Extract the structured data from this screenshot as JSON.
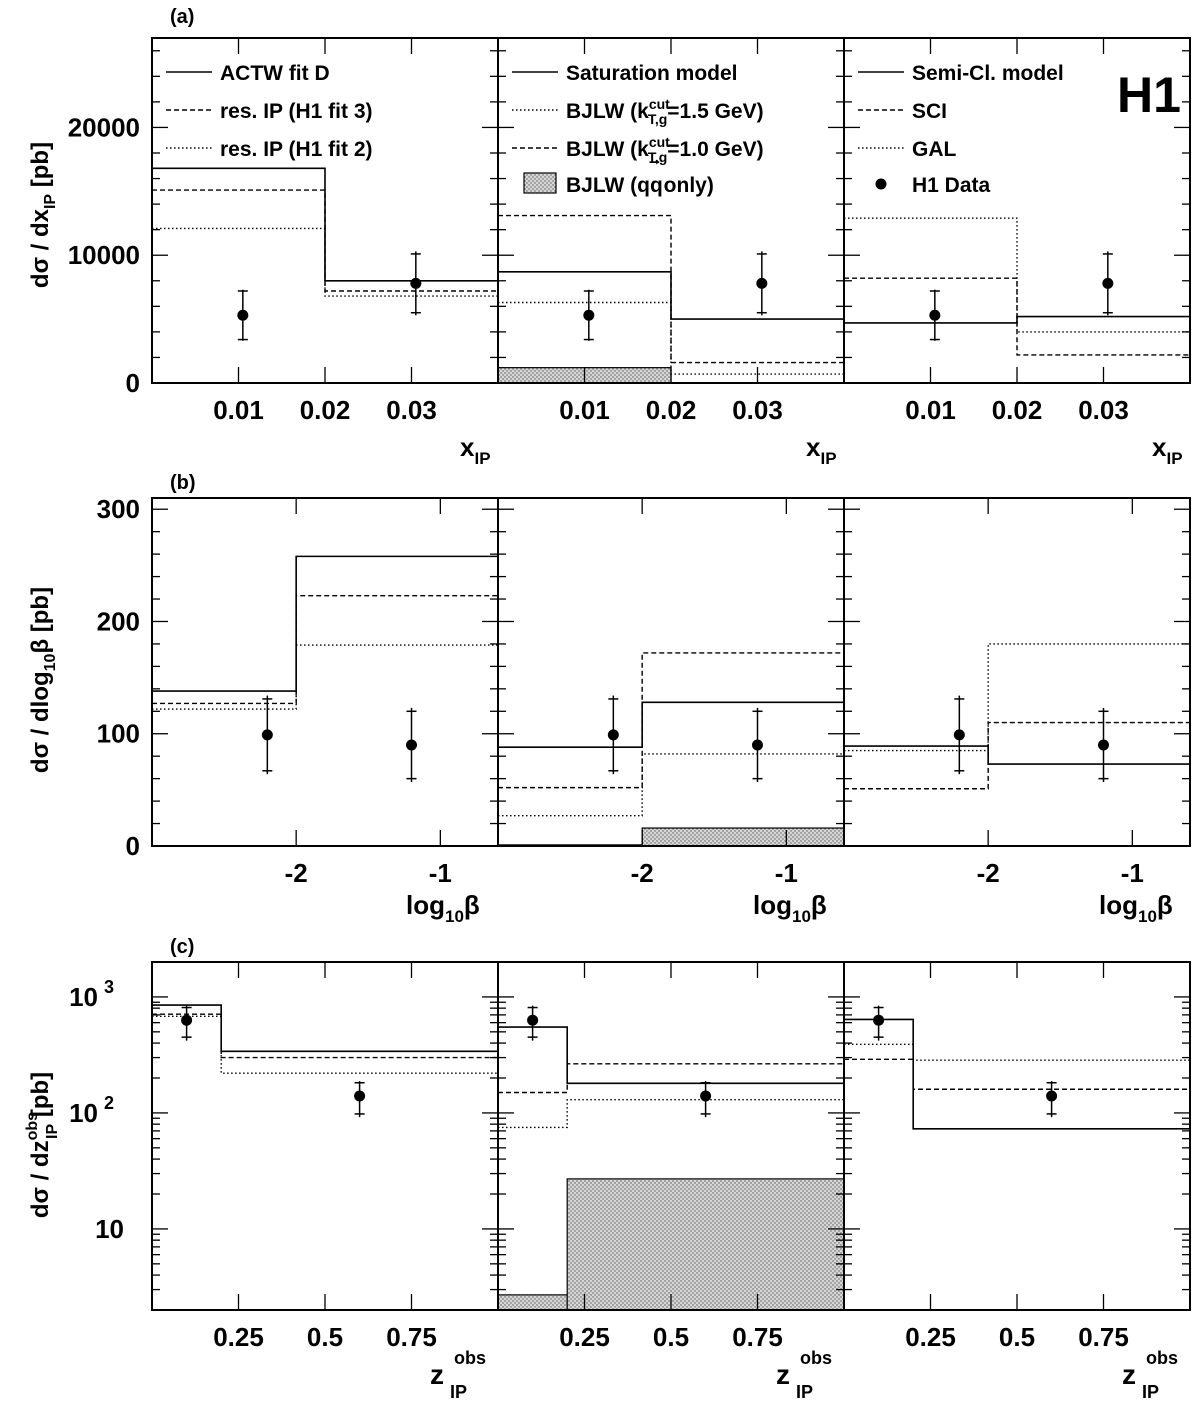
{
  "figure_label": "H1",
  "chart_data": [
    {
      "panel_label": "(a)",
      "type": "step-histogram",
      "ylabel": "dσ / dx_IP [pb]",
      "xlabel": "x_IP",
      "ylim": [
        0,
        27000
      ],
      "xlim": [
        0,
        0.04
      ],
      "yticks": [
        "0",
        "10000",
        "20000"
      ],
      "ytick_values": [
        0,
        10000,
        20000
      ],
      "xticks": [
        "0.01",
        "0.02",
        "0.03"
      ],
      "xtick_values": [
        0.01,
        0.02,
        0.03
      ],
      "bin_edges": [
        0,
        0.02,
        0.04
      ],
      "data": {
        "x": [
          0.0105,
          0.0305
        ],
        "y": [
          5300,
          7800
        ],
        "stat_err": [
          1900,
          2300
        ],
        "tot_err": [
          2000,
          2500
        ]
      },
      "subpanels": [
        {
          "legend": [
            {
              "label": "ACTW fit D",
              "style": "solid"
            },
            {
              "label": "res. IP (H1 fit 3)",
              "style": "dashed"
            },
            {
              "label": "res. IP (H1 fit 2)",
              "style": "dotted"
            }
          ],
          "series": [
            {
              "name": "ACTW fit D",
              "style": "solid",
              "values": [
                16800,
                8000
              ]
            },
            {
              "name": "res. IP (H1 fit 3)",
              "style": "dashed",
              "values": [
                15100,
                7200
              ]
            },
            {
              "name": "res. IP (H1 fit 2)",
              "style": "dotted",
              "values": [
                12100,
                6800
              ]
            }
          ]
        },
        {
          "legend": [
            {
              "label": "Saturation model",
              "style": "solid"
            },
            {
              "label": "BJLW (k_T,g^cut=1.5 GeV)",
              "style": "dotted"
            },
            {
              "label": "BJLW (k_T,g^cut=1.0 GeV)",
              "style": "dashed"
            },
            {
              "label": "BJLW (qq̄ only)",
              "style": "filled"
            }
          ],
          "series": [
            {
              "name": "Saturation model",
              "style": "solid",
              "values": [
                8700,
                5000
              ]
            },
            {
              "name": "BJLW (k_T,g^cut=1.5 GeV)",
              "style": "dotted",
              "values": [
                6300,
                700
              ]
            },
            {
              "name": "BJLW (k_T,g^cut=1.0 GeV)",
              "style": "dashed",
              "values": [
                13100,
                1600
              ]
            },
            {
              "name": "BJLW (qq̄ only)",
              "style": "filled",
              "values": [
                1200,
                0
              ]
            }
          ]
        },
        {
          "legend": [
            {
              "label": "Semi-Cl. model",
              "style": "solid"
            },
            {
              "label": "SCI",
              "style": "dashed"
            },
            {
              "label": "GAL",
              "style": "dotted"
            },
            {
              "label": "H1 Data",
              "style": "marker"
            }
          ],
          "series": [
            {
              "name": "Semi-Cl. model",
              "style": "solid",
              "values": [
                4700,
                5200
              ]
            },
            {
              "name": "SCI",
              "style": "dashed",
              "values": [
                8200,
                2200
              ]
            },
            {
              "name": "GAL",
              "style": "dotted",
              "values": [
                12900,
                4000
              ]
            }
          ]
        }
      ]
    },
    {
      "panel_label": "(b)",
      "type": "step-histogram",
      "ylabel": "dσ / dlog10β [pb]",
      "xlabel": "log10β",
      "ylim": [
        0,
        310
      ],
      "xlim": [
        -3,
        -0.6
      ],
      "yticks": [
        "0",
        "100",
        "200",
        "300"
      ],
      "ytick_values": [
        0,
        100,
        200,
        300
      ],
      "xticks": [
        "-2",
        "-1"
      ],
      "xtick_values": [
        -2,
        -1
      ],
      "bin_edges": [
        -3,
        -2,
        -0.6
      ],
      "data": {
        "x": [
          -2.2,
          -1.2
        ],
        "y": [
          99,
          90
        ],
        "stat_err": [
          32,
          30
        ],
        "tot_err": [
          35,
          33
        ]
      },
      "subpanels": [
        {
          "series": [
            {
              "name": "ACTW fit D",
              "style": "solid",
              "values": [
                138,
                258
              ]
            },
            {
              "name": "res. IP (H1 fit 3)",
              "style": "dashed",
              "values": [
                127,
                223
              ]
            },
            {
              "name": "res. IP (H1 fit 2)",
              "style": "dotted",
              "values": [
                122,
                179
              ]
            }
          ]
        },
        {
          "series": [
            {
              "name": "Saturation model",
              "style": "solid",
              "values": [
                88,
                128
              ]
            },
            {
              "name": "BJLW (k_T,g^cut=1.5 GeV)",
              "style": "dotted",
              "values": [
                27,
                82
              ]
            },
            {
              "name": "BJLW (k_T,g^cut=1.0 GeV)",
              "style": "dashed",
              "values": [
                52,
                172
              ]
            },
            {
              "name": "BJLW (qq̄ only)",
              "style": "filled",
              "values": [
                1,
                16
              ]
            }
          ]
        },
        {
          "series": [
            {
              "name": "Semi-Cl. model",
              "style": "solid",
              "values": [
                89,
                73
              ]
            },
            {
              "name": "SCI",
              "style": "dashed",
              "values": [
                51,
                110
              ]
            },
            {
              "name": "GAL",
              "style": "dotted",
              "values": [
                85,
                180
              ]
            }
          ]
        }
      ]
    },
    {
      "panel_label": "(c)",
      "type": "step-histogram",
      "scale": "log",
      "ylabel": "dσ / dz_IP^obs [pb]",
      "xlabel": "z_IP^obs",
      "ylim": [
        2.0,
        2000
      ],
      "xlim": [
        0,
        1
      ],
      "yticks": [
        "10",
        "10 2",
        "10 3"
      ],
      "ytick_values": [
        10,
        100,
        1000
      ],
      "xticks": [
        "0.25",
        "0.5",
        "0.75"
      ],
      "xtick_values": [
        0.25,
        0.5,
        0.75
      ],
      "bin_edges": [
        0,
        0.2,
        1
      ],
      "data": {
        "x": [
          0.1,
          0.6
        ],
        "y": [
          630,
          140
        ],
        "stat_err": [
          180,
          42
        ],
        "tot_err": [
          210,
          48
        ]
      },
      "subpanels": [
        {
          "series": [
            {
              "name": "ACTW fit D",
              "style": "solid",
              "values": [
                850,
                340
              ]
            },
            {
              "name": "res. IP (H1 fit 3)",
              "style": "dashed",
              "values": [
                710,
                300
              ]
            },
            {
              "name": "res. IP (H1 fit 2)",
              "style": "dotted",
              "values": [
                680,
                220
              ]
            }
          ]
        },
        {
          "series": [
            {
              "name": "Saturation model",
              "style": "solid",
              "values": [
                550,
                180
              ]
            },
            {
              "name": "BJLW (k_T,g^cut=1.5 GeV)",
              "style": "dotted",
              "values": [
                75,
                130
              ]
            },
            {
              "name": "BJLW (k_T,g^cut=1.0 GeV)",
              "style": "dashed",
              "values": [
                150,
                265
              ]
            },
            {
              "name": "BJLW (qq̄ only)",
              "style": "filled",
              "values": [
                2.7,
                27
              ]
            }
          ]
        },
        {
          "series": [
            {
              "name": "Semi-Cl. model",
              "style": "solid",
              "values": [
                640,
                73
              ]
            },
            {
              "name": "SCI",
              "style": "dashed",
              "values": [
                290,
                160
              ]
            },
            {
              "name": "GAL",
              "style": "dotted",
              "values": [
                390,
                285
              ]
            }
          ]
        }
      ]
    }
  ]
}
